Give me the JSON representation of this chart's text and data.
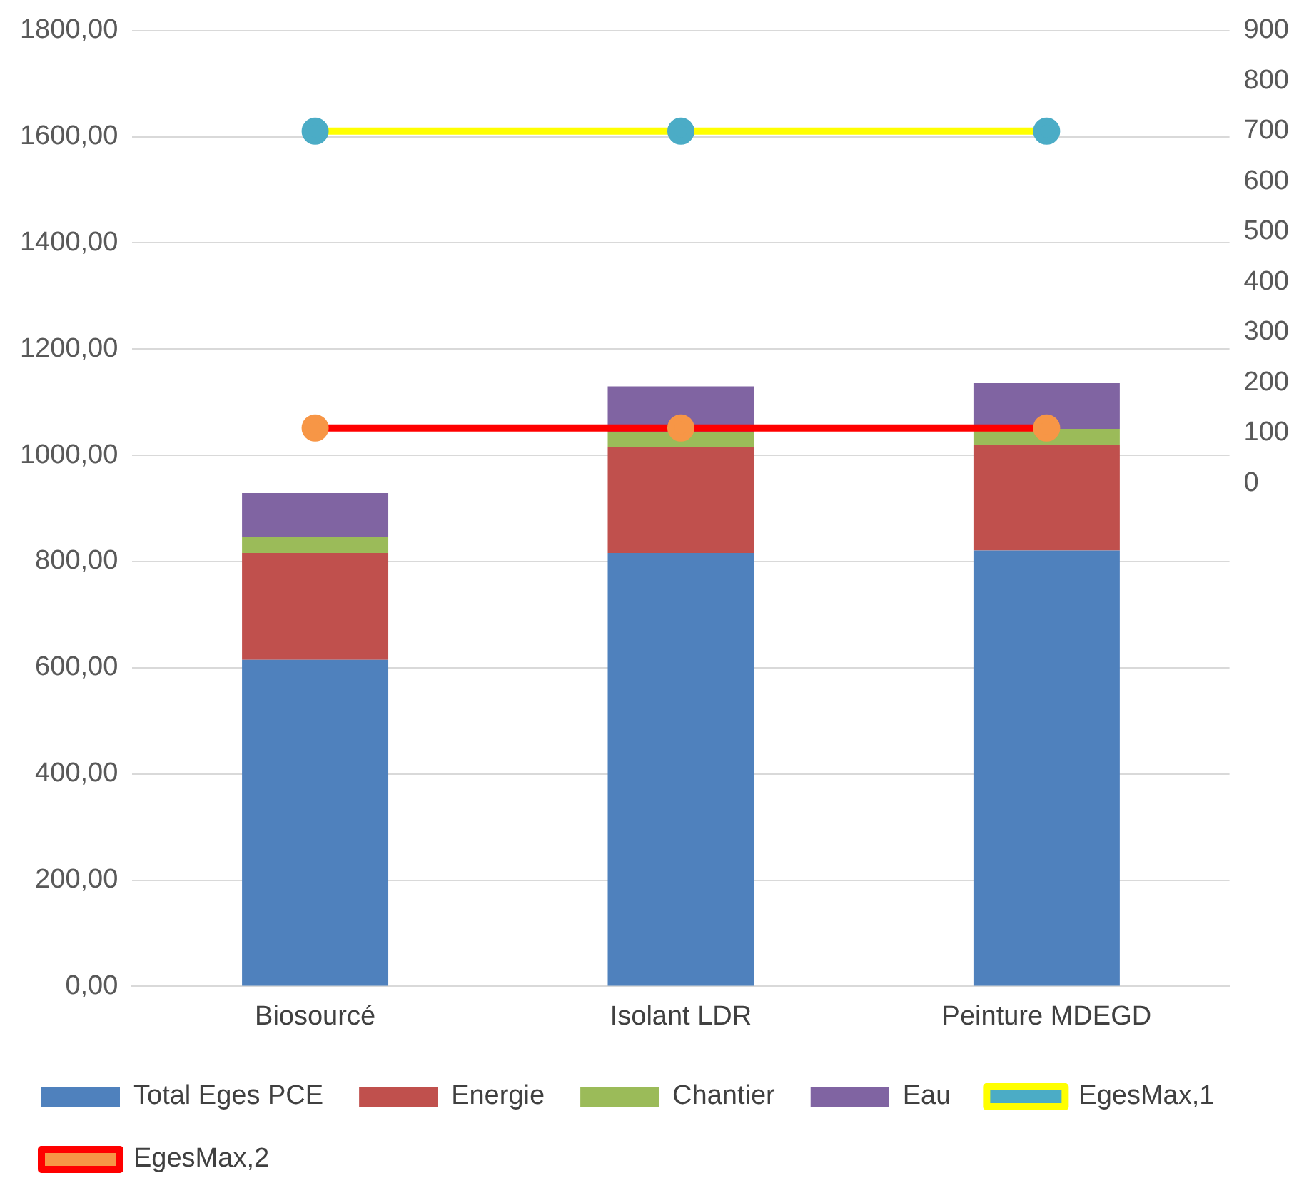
{
  "chart_data": {
    "type": "bar",
    "stacked": true,
    "categories": [
      "Biosourcé",
      "Isolant LDR",
      "Peinture MDEGD"
    ],
    "series": [
      {
        "name": "Total Eges PCE",
        "color": "#4f81bd",
        "values": [
          615,
          816,
          821
        ]
      },
      {
        "name": "Energie",
        "color": "#c0504d",
        "values": [
          201,
          199,
          199
        ]
      },
      {
        "name": "Chantier",
        "color": "#9bbb59",
        "values": [
          30,
          29,
          30
        ]
      },
      {
        "name": "Eau",
        "color": "#8064a2",
        "values": [
          83,
          86,
          86
        ]
      },
      {
        "name": "EgesMax,1",
        "type": "line",
        "axis": "y2",
        "color": "#ffff00",
        "colors": [
          "#4bacc6",
          "#4bacc6",
          "#4bacc6"
        ],
        "values": [
          700,
          700,
          700
        ]
      },
      {
        "name": "EgesMax,2",
        "type": "line",
        "axis": "y2",
        "color": "#ff0000",
        "colors": [
          "#f79646",
          "#f79646",
          "#f79646"
        ],
        "values": [
          110,
          110,
          110
        ]
      }
    ],
    "ylim": [
      0,
      1800
    ],
    "yticks": [
      {
        "value": 0,
        "label": "0,00"
      },
      {
        "value": 200,
        "label": "200,00"
      },
      {
        "value": 400,
        "label": "400,00"
      },
      {
        "value": 600,
        "label": "600,00"
      },
      {
        "value": 800,
        "label": "800,00"
      },
      {
        "value": 1000,
        "label": "1000,00"
      },
      {
        "value": 1200,
        "label": "1200,00"
      },
      {
        "value": 1400,
        "label": "1400,00"
      },
      {
        "value": 1600,
        "label": "1600,00"
      },
      {
        "value": 1800,
        "label": "1800,00"
      }
    ],
    "y2lim": [
      -1000,
      900
    ],
    "y2ticks": [
      0,
      100,
      200,
      300,
      400,
      500,
      600,
      700,
      800,
      900
    ],
    "grid": "y",
    "legend": "bottom",
    "marker": "circle",
    "line_style": "solid"
  }
}
